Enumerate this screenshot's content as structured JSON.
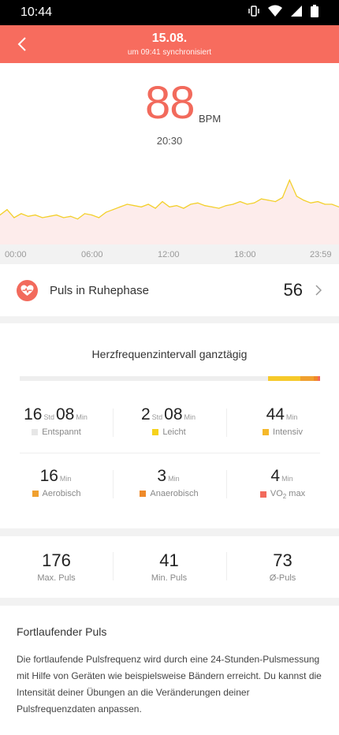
{
  "status_bar": {
    "time": "10:44"
  },
  "header": {
    "title": "15.08.",
    "subtitle": "um 09:41 synchronisiert"
  },
  "current": {
    "value": "88",
    "unit": "BPM",
    "time": "20:30"
  },
  "chart_data": {
    "type": "line",
    "x_ticks": [
      "00:00",
      "06:00",
      "12:00",
      "18:00",
      "23:59"
    ],
    "x": [
      "00:00",
      "00:30",
      "01:00",
      "01:30",
      "02:00",
      "02:30",
      "03:00",
      "03:30",
      "04:00",
      "04:30",
      "05:00",
      "05:30",
      "06:00",
      "06:30",
      "07:00",
      "07:30",
      "08:00",
      "08:30",
      "09:00",
      "09:30",
      "10:00",
      "10:30",
      "11:00",
      "11:30",
      "12:00",
      "12:30",
      "13:00",
      "13:30",
      "14:00",
      "14:30",
      "15:00",
      "15:30",
      "16:00",
      "16:30",
      "17:00",
      "17:30",
      "18:00",
      "18:30",
      "19:00",
      "19:30",
      "20:00",
      "20:30",
      "21:00",
      "21:30",
      "22:00",
      "22:30",
      "23:00",
      "23:30",
      "23:59"
    ],
    "values": [
      62,
      66,
      60,
      63,
      61,
      62,
      60,
      61,
      62,
      60,
      61,
      59,
      63,
      62,
      60,
      64,
      66,
      68,
      70,
      69,
      68,
      70,
      67,
      72,
      68,
      69,
      67,
      70,
      71,
      69,
      68,
      67,
      69,
      70,
      72,
      70,
      71,
      74,
      73,
      72,
      75,
      88,
      76,
      73,
      71,
      72,
      70,
      70,
      68
    ],
    "line_color": "#f3d02c",
    "fill_color": "#fdeceb",
    "y_range": [
      40,
      100
    ]
  },
  "resting": {
    "label": "Puls in Ruhephase",
    "value": "56"
  },
  "zones": {
    "title": "Herzfrequenzintervall ganztägig",
    "bar": [
      {
        "fraction": 0.826,
        "color": "#eeeeee"
      },
      {
        "fraction": 0.109,
        "color": "#f6c92a"
      },
      {
        "fraction": 0.043,
        "color": "#f0a02f"
      },
      {
        "fraction": 0.014,
        "color": "#ef8a2a"
      },
      {
        "fraction": 0.008,
        "color": "#f26a5c"
      }
    ],
    "relaxed": {
      "h": "16",
      "h_unit": "Std",
      "m": "08",
      "m_unit": "Min",
      "label": "Entspannt",
      "color": "#e6e6e6"
    },
    "light": {
      "h": "2",
      "h_unit": "Std",
      "m": "08",
      "m_unit": "Min",
      "label": "Leicht",
      "color": "#f6d21c"
    },
    "intensive": {
      "m": "44",
      "m_unit": "Min",
      "label": "Intensiv",
      "color": "#f5b82a"
    },
    "aerobic": {
      "m": "16",
      "m_unit": "Min",
      "label": "Aerobisch",
      "color": "#f0a02f"
    },
    "anaerobic": {
      "m": "3",
      "m_unit": "Min",
      "label": "Anaerobisch",
      "color": "#ef8a2a"
    },
    "vo2": {
      "m": "4",
      "m_unit": "Min",
      "label_pre": "VO",
      "label_sub": "2",
      "label_post": " max",
      "color": "#f26a5c"
    }
  },
  "summary": {
    "max": {
      "value": "176",
      "label": "Max. Puls"
    },
    "min": {
      "value": "41",
      "label": "Min. Puls"
    },
    "avg": {
      "value": "73",
      "label": "Ø-Puls"
    }
  },
  "info": {
    "title": "Fortlaufender Puls",
    "text": "Die fortlaufende Pulsfrequenz wird durch eine 24-Stunden-Pulsmessung mit Hilfe von Geräten wie beispielsweise Bändern erreicht. Du kannst die Intensität deiner Übungen an die Veränderungen deiner Pulsfrequenzdaten anpassen."
  }
}
